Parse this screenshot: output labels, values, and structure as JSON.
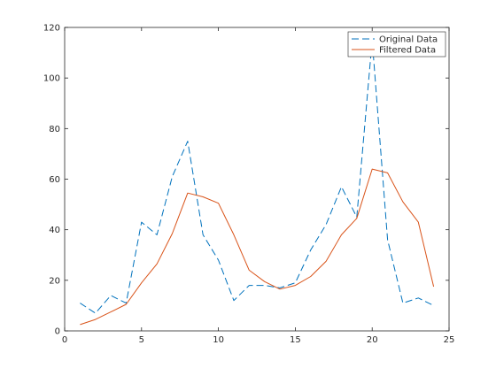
{
  "chart_data": {
    "type": "line",
    "title": "",
    "xlabel": "",
    "ylabel": "",
    "xlim": [
      0,
      25
    ],
    "ylim": [
      0,
      120
    ],
    "xticks": [
      0,
      5,
      10,
      15,
      20,
      25
    ],
    "yticks": [
      0,
      20,
      40,
      60,
      80,
      100,
      120
    ],
    "grid": false,
    "legend_position": "top-right",
    "series": [
      {
        "name": "Original Data",
        "color": "#0072BD",
        "style": "dashed",
        "x": [
          1,
          2,
          3,
          4,
          5,
          6,
          7,
          8,
          9,
          10,
          11,
          12,
          13,
          14,
          15,
          16,
          17,
          18,
          19,
          20,
          21,
          22,
          23,
          24
        ],
        "y": [
          11,
          7,
          14,
          11,
          43,
          38,
          61,
          75,
          38,
          28,
          12,
          18,
          18,
          17,
          19,
          32,
          42,
          57,
          45,
          115,
          36,
          11,
          13,
          10
        ]
      },
      {
        "name": "Filtered Data",
        "color": "#D95319",
        "style": "solid",
        "x": [
          1,
          2,
          3,
          4,
          5,
          6,
          7,
          8,
          9,
          10,
          11,
          12,
          13,
          14,
          15,
          16,
          17,
          18,
          19,
          20,
          21,
          22,
          23,
          24
        ],
        "y": [
          2.5,
          4.5,
          7.5,
          10.5,
          19,
          26.5,
          38.5,
          54.5,
          53,
          50.5,
          38,
          24,
          19.5,
          16.5,
          18,
          21.5,
          27.5,
          38,
          44.5,
          64,
          62.5,
          51,
          43,
          17.5
        ]
      }
    ]
  }
}
